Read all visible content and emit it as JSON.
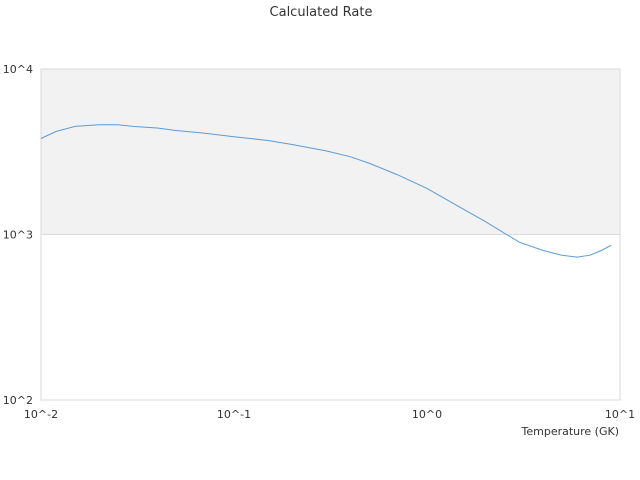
{
  "chart_data": {
    "type": "line",
    "title": "Calculated Rate",
    "xlabel": "Temperature (GK)",
    "ylabel": "",
    "x_scale": "log",
    "y_scale": "log",
    "xlim": [
      0.01,
      10
    ],
    "ylim": [
      100,
      10000
    ],
    "x_ticks": [
      "10^-2",
      "10^-1",
      "10^0",
      "10^1"
    ],
    "y_ticks": [
      "10^2",
      "10^3",
      "10^4"
    ],
    "shaded_band": {
      "y_from": 1000,
      "y_to": 10000,
      "color": "#f2f2f2"
    },
    "grid": false,
    "series": [
      {
        "color": "#5b9bd5",
        "x": [
          0.01,
          0.012,
          0.015,
          0.02,
          0.025,
          0.03,
          0.04,
          0.05,
          0.07,
          0.1,
          0.15,
          0.2,
          0.3,
          0.4,
          0.5,
          0.7,
          1.0,
          1.5,
          2.0,
          3.0,
          4.0,
          5.0,
          6.0,
          7.0,
          8.0,
          9.0
        ],
        "y": [
          3800,
          4200,
          4500,
          4600,
          4600,
          4500,
          4400,
          4250,
          4100,
          3900,
          3700,
          3500,
          3200,
          2950,
          2700,
          2300,
          1900,
          1450,
          1200,
          900,
          800,
          750,
          730,
          750,
          800,
          860
        ]
      }
    ]
  }
}
